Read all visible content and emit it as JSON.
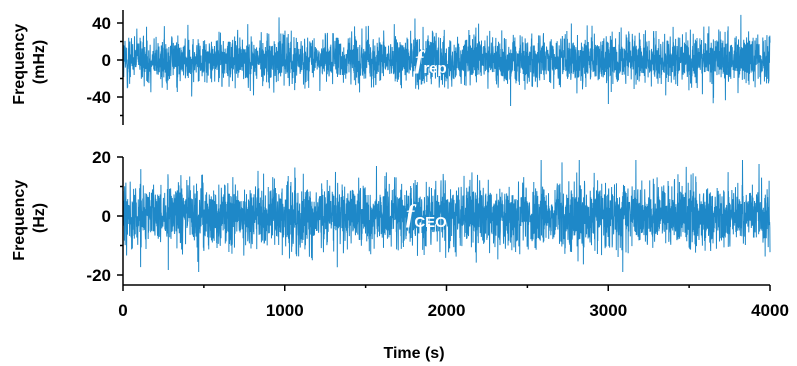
{
  "colors": {
    "series": "#1e88c8",
    "axis": "#000000",
    "label": "#ffffff"
  },
  "chart_data": [
    {
      "type": "line",
      "ylabel_lines": [
        "Frequency",
        "(mHz)"
      ],
      "series": [
        {
          "label_main": "f",
          "label_sub": "rep",
          "amplitude_typical": 22,
          "peak_max": 60,
          "peak_min": -68
        }
      ],
      "xlim": [
        0,
        4000
      ],
      "ylim": [
        -68,
        60
      ],
      "yticks": [
        -40,
        0,
        40
      ],
      "ytick_labels": [
        "-40",
        "0",
        "40"
      ],
      "grid": false
    },
    {
      "type": "line",
      "ylabel_lines": [
        "Frequency",
        "(Hz)"
      ],
      "series": [
        {
          "label_main": "f",
          "label_sub": "CEO",
          "amplitude_typical": 9,
          "peak_max": 19,
          "peak_min": -19
        }
      ],
      "xlim": [
        0,
        4000
      ],
      "ylim": [
        -22,
        20
      ],
      "yticks": [
        -20,
        0,
        20
      ],
      "ytick_labels": [
        "-20",
        "0",
        "20"
      ],
      "xlabel": "Time (s)",
      "xticks": [
        0,
        1000,
        2000,
        3000,
        4000
      ],
      "xtick_labels": [
        "0",
        "1000",
        "2000",
        "3000",
        "4000"
      ],
      "grid": false
    }
  ]
}
